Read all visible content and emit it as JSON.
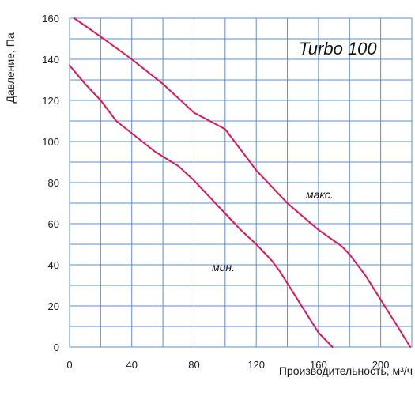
{
  "chart_data": {
    "type": "line",
    "title": "Turbo 100",
    "xlabel": "Производительность, м³/ч",
    "ylabel": "Давление, Па",
    "xlim": [
      0,
      220
    ],
    "ylim": [
      0,
      160
    ],
    "x_ticks": [
      "0",
      "40",
      "80",
      "120",
      "160",
      "200"
    ],
    "y_ticks": [
      "0",
      "20",
      "40",
      "60",
      "80",
      "100",
      "120",
      "140",
      "160"
    ],
    "grid": true,
    "line_color": "#e0145a",
    "grid_color": "#5b8fd0",
    "series": [
      {
        "name": "макс.",
        "points": [
          [
            3,
            160
          ],
          [
            20,
            151
          ],
          [
            40,
            140
          ],
          [
            60,
            128
          ],
          [
            80,
            114
          ],
          [
            100,
            106
          ],
          [
            110,
            96
          ],
          [
            120,
            86
          ],
          [
            140,
            70
          ],
          [
            160,
            57
          ],
          [
            175,
            49
          ],
          [
            180,
            45
          ],
          [
            190,
            35
          ],
          [
            200,
            23
          ],
          [
            210,
            11
          ],
          [
            219,
            0
          ]
        ]
      },
      {
        "name": "мин.",
        "points": [
          [
            0,
            137
          ],
          [
            10,
            128
          ],
          [
            20,
            120
          ],
          [
            30,
            110
          ],
          [
            40,
            104
          ],
          [
            55,
            95
          ],
          [
            70,
            88
          ],
          [
            80,
            81
          ],
          [
            90,
            73
          ],
          [
            100,
            65
          ],
          [
            110,
            57
          ],
          [
            120,
            50
          ],
          [
            130,
            42
          ],
          [
            135,
            37
          ],
          [
            140,
            31
          ],
          [
            150,
            19
          ],
          [
            160,
            7
          ],
          [
            169,
            0
          ]
        ]
      }
    ]
  }
}
